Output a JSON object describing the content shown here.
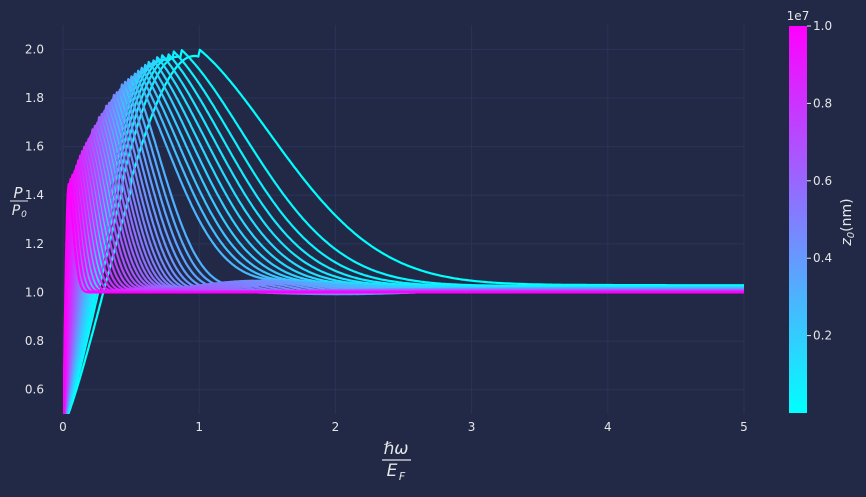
{
  "chart_data": {
    "type": "line",
    "title": "",
    "xlabel": {
      "num": "ℏω",
      "den": "E",
      "den_sub": "F"
    },
    "ylabel": {
      "num": "P",
      "den": "P",
      "den_sub": "0"
    },
    "xlim": [
      0,
      5
    ],
    "ylim": [
      0.5,
      2.1
    ],
    "xticks": [
      0,
      1,
      2,
      3,
      4,
      5
    ],
    "yticks": [
      0.6,
      0.8,
      1.0,
      1.2,
      1.4,
      1.6,
      1.8,
      2.0
    ],
    "xtick_labels": [
      "0",
      "1",
      "2",
      "3",
      "4",
      "5"
    ],
    "ytick_labels": [
      "0.6",
      "0.8",
      "1.0",
      "1.2",
      "1.4",
      "1.6",
      "1.8",
      "2.0"
    ],
    "grid": true,
    "series_count": 40,
    "series_description": "Family of P/P0 vs ħω/E_F curves, one per z0 value; color encodes z0. Small z0 (cyan): curves rise to a peak of about 2.0 near ħω/E_F≈1 then decay toward 1.0. Large z0 (magenta): curves spike to about 1.45 near ħω/E_F≈0.05 and quickly settle to 1.0. Intermediate curves oscillate around 1.0 (min ≈0.9 near 0.8).",
    "colormap": {
      "name": "cool",
      "low": "#00ffff",
      "high": "#ff00ff"
    },
    "colorbar": {
      "label_main": "z",
      "label_sub": "0",
      "label_unit": "(nm)",
      "multiplier": "1e7",
      "range": [
        0.0,
        1.0
      ],
      "ticks": [
        0.2,
        0.4,
        0.6,
        0.8,
        1.0
      ],
      "tick_labels": [
        "0.2",
        "0.4",
        "0.6",
        "0.8",
        "1.0"
      ]
    }
  },
  "colors": {
    "background": "#212946",
    "grid": "#2a3459",
    "text": "#e6e6e6"
  }
}
